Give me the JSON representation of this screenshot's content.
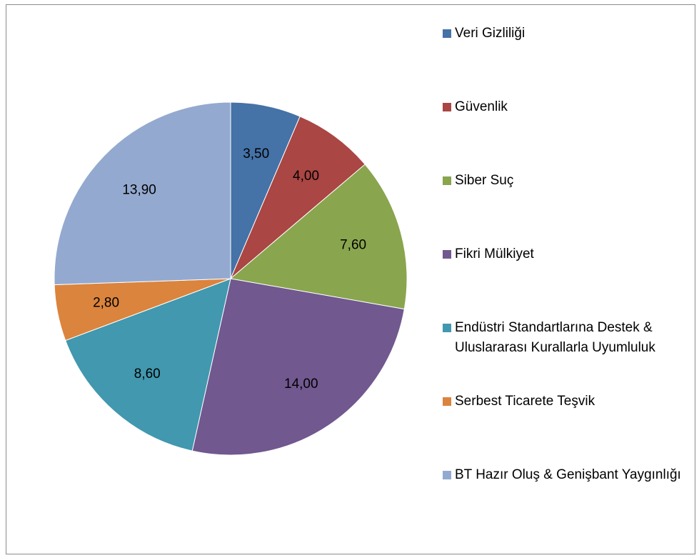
{
  "chart_data": {
    "type": "pie",
    "categories": [
      "Veri Gizliliği",
      "Güvenlik",
      "Siber Suç",
      "Fikri Mülkiyet",
      "Endüstri Standartlarına Destek & Uluslararası Kurallarla Uyumluluk",
      "Serbest Ticarete Teşvik",
      "BT Hazır Oluş & Genişbant Yaygınlığı"
    ],
    "values": [
      3.5,
      4.0,
      7.6,
      14.0,
      8.6,
      2.8,
      13.9
    ],
    "value_labels": [
      "3,50",
      "4,00",
      "7,60",
      "14,00",
      "8,60",
      "2,80",
      "13,90"
    ],
    "colors": [
      "#4572A7",
      "#AA4643",
      "#89A54E",
      "#71588F",
      "#4198AF",
      "#DB843D",
      "#93A9CF"
    ],
    "legend": "right"
  }
}
